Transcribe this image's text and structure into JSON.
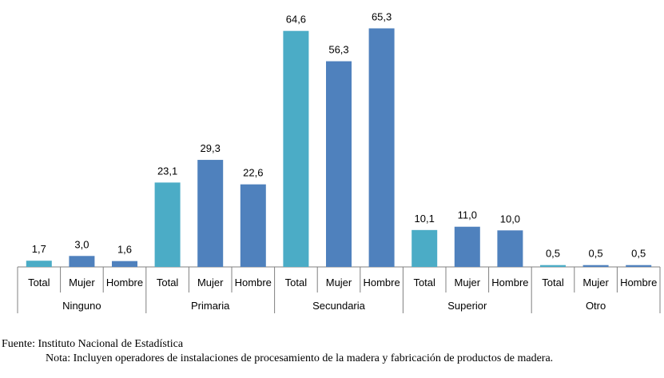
{
  "chart_data": {
    "type": "bar",
    "groups": [
      {
        "label": "Ninguno",
        "categories": [
          "Total",
          "Mujer",
          "Hombre"
        ],
        "values": [
          1.7,
          3.0,
          1.6
        ],
        "labels": [
          "1,7",
          "3,0",
          "1,6"
        ]
      },
      {
        "label": "Primaria",
        "categories": [
          "Total",
          "Mujer",
          "Hombre"
        ],
        "values": [
          23.1,
          29.3,
          22.6
        ],
        "labels": [
          "23,1",
          "29,3",
          "22,6"
        ]
      },
      {
        "label": "Secundaria",
        "categories": [
          "Total",
          "Mujer",
          "Hombre"
        ],
        "values": [
          64.6,
          56.3,
          65.3
        ],
        "labels": [
          "64,6",
          "56,3",
          "65,3"
        ]
      },
      {
        "label": "Superior",
        "categories": [
          "Total",
          "Mujer",
          "Hombre"
        ],
        "values": [
          10.1,
          11.0,
          10.0
        ],
        "labels": [
          "10,1",
          "11,0",
          "10,0"
        ]
      },
      {
        "label": "Otro",
        "categories": [
          "Total",
          "Mujer",
          "Hombre"
        ],
        "values": [
          0.5,
          0.5,
          0.5
        ],
        "labels": [
          "0,5",
          "0,5",
          "0,5"
        ]
      }
    ],
    "colors": {
      "Total": "#4bacc6",
      "Mujer": "#4f81bd",
      "Hombre": "#4f81bd"
    },
    "ylim": [
      0,
      70
    ]
  },
  "footer": {
    "source": "Fuente: Instituto Nacional de Estadística",
    "note": "Nota: Incluyen operadores de instalaciones de procesamiento de la madera y fabricación de productos de madera."
  }
}
